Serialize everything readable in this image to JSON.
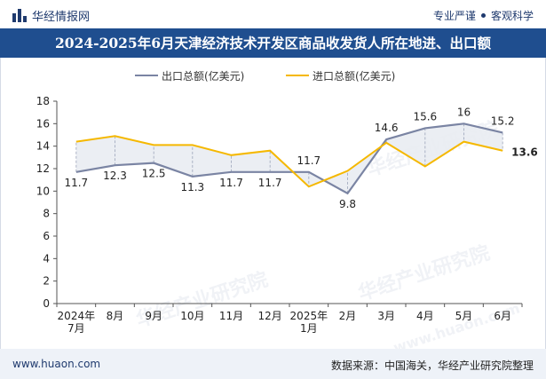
{
  "brand": {
    "logo_text": "华经情报网",
    "tagline_left": "专业严谨",
    "tagline_right": "客观科学"
  },
  "header": {
    "title": "2024-2025年6月天津经济技术开发区商品收发货人所在地进、出口额"
  },
  "footer": {
    "website": "www.huaon.com",
    "source": "数据来源：中国海关，华经产业研究院整理"
  },
  "watermarks": [
    "华经产业研究院",
    "www.huaon.com"
  ],
  "colors": {
    "export": "#7a84a3",
    "import": "#f5b800",
    "fill": "#e9ecf2",
    "titlebar": "#1f4e8f"
  },
  "chart_data": {
    "type": "line",
    "categories": [
      "2024年\n7月",
      "8月",
      "9月",
      "10月",
      "11月",
      "12月",
      "2025年\n1月",
      "2月",
      "3月",
      "4月",
      "5月",
      "6月"
    ],
    "ylim": [
      0,
      18
    ],
    "yticks": [
      0,
      2,
      4,
      6,
      8,
      10,
      12,
      14,
      16,
      18
    ],
    "legend_position": "top",
    "grid": false,
    "series": [
      {
        "name": "出口总额(亿美元)",
        "values": [
          11.7,
          12.3,
          12.5,
          11.3,
          11.7,
          11.7,
          11.7,
          9.8,
          14.6,
          15.6,
          16,
          15.2
        ]
      },
      {
        "name": "进口总额(亿美元)",
        "values": [
          14.4,
          14.9,
          14.1,
          14.1,
          13.2,
          13.6,
          10.4,
          11.8,
          14.3,
          12.2,
          14.4,
          13.6
        ]
      }
    ],
    "labels": {
      "export": [
        "11.7",
        "12.3",
        "12.5",
        "11.3",
        "11.7",
        "11.7",
        "11.7",
        "9.8",
        "14.6",
        "15.6",
        "16",
        "15.2"
      ],
      "import_last": "13.6"
    }
  }
}
